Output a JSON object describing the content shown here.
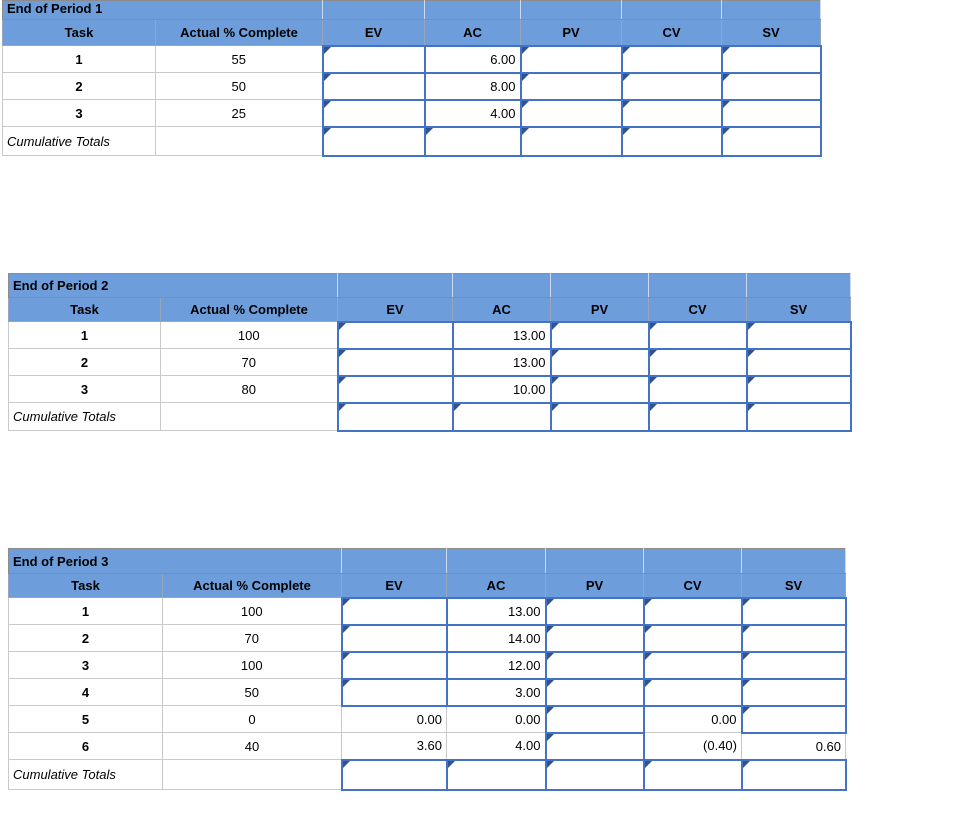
{
  "colors": {
    "header_blue": "#6D9EDB",
    "input_border": "#4472C4",
    "flag": "#2E5395",
    "grid_line": "#C9C9C9",
    "outer_border": "#8C8C8C",
    "background": "#FFFFFF",
    "text": "#000000"
  },
  "tables": [
    {
      "title": "End of Period 1",
      "headers": [
        "Task",
        "Actual % Complete",
        "EV",
        "AC",
        "PV",
        "CV",
        "SV"
      ],
      "rows": [
        {
          "cells": [
            {
              "kind": "task",
              "value": "1"
            },
            {
              "kind": "pct",
              "value": "55"
            },
            {
              "kind": "input",
              "value": "",
              "flag": true
            },
            {
              "kind": "input",
              "value": "6.00"
            },
            {
              "kind": "input",
              "value": "",
              "flag": true
            },
            {
              "kind": "input",
              "value": "",
              "flag": true
            },
            {
              "kind": "input",
              "value": "",
              "flag": true
            }
          ]
        },
        {
          "cells": [
            {
              "kind": "task",
              "value": "2"
            },
            {
              "kind": "pct",
              "value": "50"
            },
            {
              "kind": "input",
              "value": "",
              "flag": true
            },
            {
              "kind": "input",
              "value": "8.00"
            },
            {
              "kind": "input",
              "value": "",
              "flag": true
            },
            {
              "kind": "input",
              "value": "",
              "flag": true
            },
            {
              "kind": "input",
              "value": "",
              "flag": true
            }
          ]
        },
        {
          "cells": [
            {
              "kind": "task",
              "value": "3"
            },
            {
              "kind": "pct",
              "value": "25"
            },
            {
              "kind": "input",
              "value": "",
              "flag": true
            },
            {
              "kind": "input",
              "value": "4.00"
            },
            {
              "kind": "input",
              "value": "",
              "flag": true
            },
            {
              "kind": "input",
              "value": "",
              "flag": true
            },
            {
              "kind": "input",
              "value": "",
              "flag": true
            }
          ]
        },
        {
          "cells": [
            {
              "kind": "cum",
              "value": "Cumulative Totals"
            },
            {
              "kind": "pct",
              "value": ""
            },
            {
              "kind": "input",
              "value": "",
              "flag": true
            },
            {
              "kind": "input",
              "value": "",
              "flag": true
            },
            {
              "kind": "input",
              "value": "",
              "flag": true
            },
            {
              "kind": "input",
              "value": "",
              "flag": true
            },
            {
              "kind": "input",
              "value": "",
              "flag": true
            }
          ]
        }
      ]
    },
    {
      "title": "End of Period 2",
      "headers": [
        "Task",
        "Actual % Complete",
        "EV",
        "AC",
        "PV",
        "CV",
        "SV"
      ],
      "rows": [
        {
          "cells": [
            {
              "kind": "task",
              "value": "1"
            },
            {
              "kind": "pct",
              "value": "100"
            },
            {
              "kind": "input",
              "value": "",
              "flag": true
            },
            {
              "kind": "input",
              "value": "13.00"
            },
            {
              "kind": "input",
              "value": "",
              "flag": true
            },
            {
              "kind": "input",
              "value": "",
              "flag": true
            },
            {
              "kind": "input",
              "value": "",
              "flag": true
            }
          ]
        },
        {
          "cells": [
            {
              "kind": "task",
              "value": "2"
            },
            {
              "kind": "pct",
              "value": "70"
            },
            {
              "kind": "input",
              "value": "",
              "flag": true
            },
            {
              "kind": "input",
              "value": "13.00"
            },
            {
              "kind": "input",
              "value": "",
              "flag": true
            },
            {
              "kind": "input",
              "value": "",
              "flag": true
            },
            {
              "kind": "input",
              "value": "",
              "flag": true
            }
          ]
        },
        {
          "cells": [
            {
              "kind": "task",
              "value": "3"
            },
            {
              "kind": "pct",
              "value": "80"
            },
            {
              "kind": "input",
              "value": "",
              "flag": true
            },
            {
              "kind": "input",
              "value": "10.00"
            },
            {
              "kind": "input",
              "value": "",
              "flag": true
            },
            {
              "kind": "input",
              "value": "",
              "flag": true
            },
            {
              "kind": "input",
              "value": "",
              "flag": true
            }
          ]
        },
        {
          "cells": [
            {
              "kind": "cum",
              "value": "Cumulative Totals"
            },
            {
              "kind": "pct",
              "value": ""
            },
            {
              "kind": "input",
              "value": "",
              "flag": true
            },
            {
              "kind": "input",
              "value": "",
              "flag": true
            },
            {
              "kind": "input",
              "value": "",
              "flag": true
            },
            {
              "kind": "input",
              "value": "",
              "flag": true
            },
            {
              "kind": "input",
              "value": "",
              "flag": true
            }
          ]
        }
      ]
    },
    {
      "title": "End of Period 3",
      "headers": [
        "Task",
        "Actual % Complete",
        "EV",
        "AC",
        "PV",
        "CV",
        "SV"
      ],
      "rows": [
        {
          "cells": [
            {
              "kind": "task",
              "value": "1"
            },
            {
              "kind": "pct",
              "value": "100"
            },
            {
              "kind": "input",
              "value": "",
              "flag": true
            },
            {
              "kind": "input",
              "value": "13.00"
            },
            {
              "kind": "input",
              "value": "",
              "flag": true
            },
            {
              "kind": "input",
              "value": "",
              "flag": true
            },
            {
              "kind": "input",
              "value": "",
              "flag": true
            }
          ]
        },
        {
          "cells": [
            {
              "kind": "task",
              "value": "2"
            },
            {
              "kind": "pct",
              "value": "70"
            },
            {
              "kind": "input",
              "value": "",
              "flag": true
            },
            {
              "kind": "input",
              "value": "14.00"
            },
            {
              "kind": "input",
              "value": "",
              "flag": true
            },
            {
              "kind": "input",
              "value": "",
              "flag": true
            },
            {
              "kind": "input",
              "value": "",
              "flag": true
            }
          ]
        },
        {
          "cells": [
            {
              "kind": "task",
              "value": "3"
            },
            {
              "kind": "pct",
              "value": "100"
            },
            {
              "kind": "input",
              "value": "",
              "flag": true
            },
            {
              "kind": "input",
              "value": "12.00"
            },
            {
              "kind": "input",
              "value": "",
              "flag": true
            },
            {
              "kind": "input",
              "value": "",
              "flag": true
            },
            {
              "kind": "input",
              "value": "",
              "flag": true
            }
          ]
        },
        {
          "cells": [
            {
              "kind": "task",
              "value": "4"
            },
            {
              "kind": "pct",
              "value": "50"
            },
            {
              "kind": "input",
              "value": "",
              "flag": true
            },
            {
              "kind": "input",
              "value": "3.00"
            },
            {
              "kind": "input",
              "value": "",
              "flag": true
            },
            {
              "kind": "input",
              "value": "",
              "flag": true
            },
            {
              "kind": "input",
              "value": "",
              "flag": true
            }
          ]
        },
        {
          "cells": [
            {
              "kind": "task",
              "value": "5"
            },
            {
              "kind": "pct",
              "value": "0"
            },
            {
              "kind": "value",
              "value": "0.00"
            },
            {
              "kind": "value",
              "value": "0.00"
            },
            {
              "kind": "input",
              "value": "",
              "flag": true
            },
            {
              "kind": "value",
              "value": "0.00"
            },
            {
              "kind": "input",
              "value": "",
              "flag": true
            }
          ]
        },
        {
          "cells": [
            {
              "kind": "task",
              "value": "6"
            },
            {
              "kind": "pct",
              "value": "40"
            },
            {
              "kind": "value",
              "value": "3.60"
            },
            {
              "kind": "value",
              "value": "4.00"
            },
            {
              "kind": "input",
              "value": "",
              "flag": true
            },
            {
              "kind": "value",
              "value": "(0.40)"
            },
            {
              "kind": "value",
              "value": "0.60"
            }
          ]
        },
        {
          "cells": [
            {
              "kind": "cum",
              "value": "Cumulative Totals"
            },
            {
              "kind": "pct",
              "value": ""
            },
            {
              "kind": "input",
              "value": "",
              "flag": true
            },
            {
              "kind": "input",
              "value": "",
              "flag": true
            },
            {
              "kind": "input",
              "value": "",
              "flag": true
            },
            {
              "kind": "input",
              "value": "",
              "flag": true
            },
            {
              "kind": "input",
              "value": "",
              "flag": true
            }
          ]
        }
      ]
    }
  ]
}
